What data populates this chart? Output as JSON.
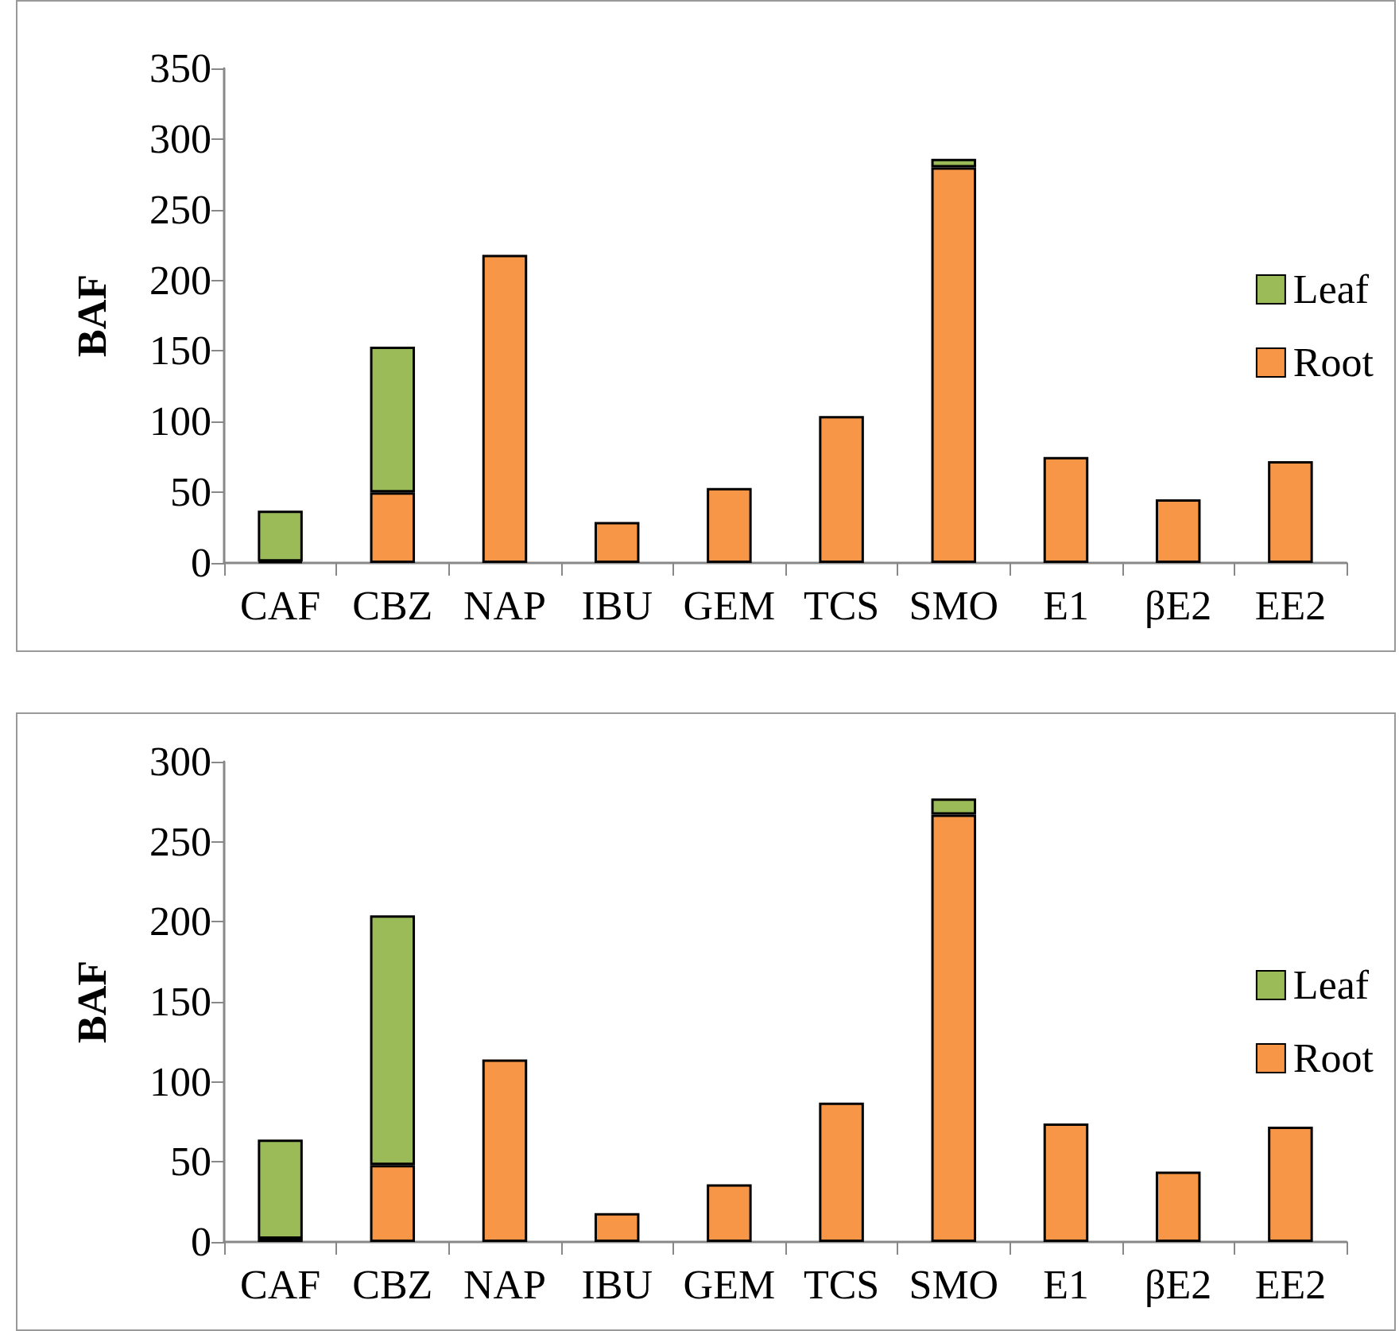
{
  "chart_data": [
    {
      "type": "bar",
      "stacked": true,
      "ylabel": "BAF",
      "categories": [
        "CAF",
        "CBZ",
        "NAP",
        "IBU",
        "GEM",
        "TCS",
        "SMO",
        "E1",
        "βE2",
        "EE2"
      ],
      "ylim": [
        0,
        350
      ],
      "yticks": [
        0,
        50,
        100,
        150,
        200,
        250,
        300,
        350
      ],
      "grid": false,
      "legend": "right",
      "series": [
        {
          "name": "Root",
          "color": "#f79646",
          "values": [
            1,
            50,
            218,
            29,
            53,
            104,
            280,
            75,
            45,
            72
          ]
        },
        {
          "name": "Leaf",
          "color": "#9bbb59",
          "values": [
            36,
            103,
            0,
            0,
            0,
            0,
            6,
            0,
            0,
            0
          ]
        }
      ]
    },
    {
      "type": "bar",
      "stacked": true,
      "ylabel": "BAF",
      "categories": [
        "CAF",
        "CBZ",
        "NAP",
        "IBU",
        "GEM",
        "TCS",
        "SMO",
        "E1",
        "βE2",
        "EE2"
      ],
      "ylim": [
        0,
        300
      ],
      "yticks": [
        0,
        50,
        100,
        150,
        200,
        250,
        300
      ],
      "grid": false,
      "legend": "right",
      "series": [
        {
          "name": "Root",
          "color": "#f79646",
          "values": [
            2,
            48,
            114,
            18,
            36,
            87,
            267,
            74,
            44,
            72
          ]
        },
        {
          "name": "Leaf",
          "color": "#9bbb59",
          "values": [
            62,
            156,
            0,
            0,
            0,
            0,
            10,
            0,
            0,
            0
          ]
        }
      ]
    }
  ]
}
